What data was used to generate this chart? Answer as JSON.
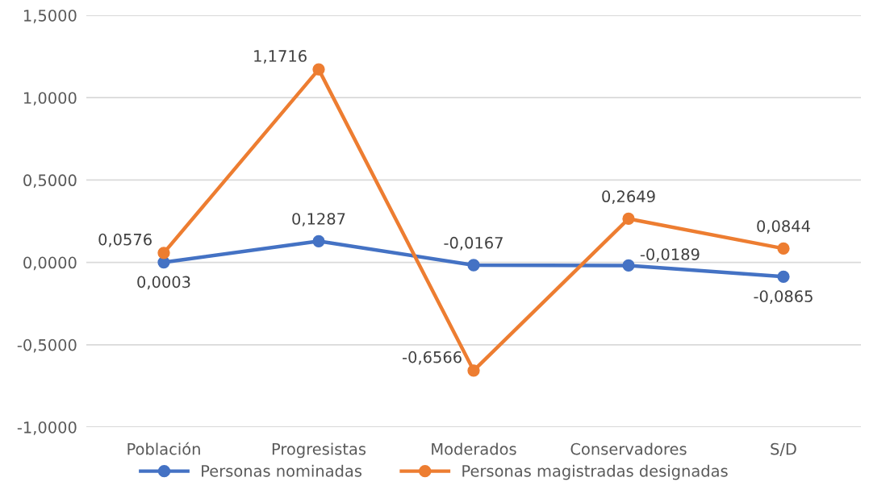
{
  "chart_data": {
    "type": "line",
    "categories": [
      "Población",
      "Progresistas",
      "Moderados",
      "Conservadores",
      "S/D"
    ],
    "series": [
      {
        "name": "Personas nominadas",
        "color": "#4472c4",
        "values": [
          0.0003,
          0.1287,
          -0.0167,
          -0.0189,
          -0.0865
        ],
        "value_labels": [
          "0,0003",
          "0,1287",
          "-0,0167",
          "-0,0189",
          "-0,0865"
        ]
      },
      {
        "name": "Personas magistradas designadas",
        "color": "#ed7d31",
        "values": [
          0.0576,
          1.1716,
          -0.6566,
          0.2649,
          0.0844
        ],
        "value_labels": [
          "0,0576",
          "1,1716",
          "-0,6566",
          "0,2649",
          "0,0844"
        ]
      }
    ],
    "ylim": [
      -1,
      1.5
    ],
    "yticks": [
      {
        "value": -1,
        "label": "-1,0000"
      },
      {
        "value": -0.5,
        "label": "-0,5000"
      },
      {
        "value": 0,
        "label": "0,0000"
      },
      {
        "value": 0.5,
        "label": "0,5000"
      },
      {
        "value": 1,
        "label": "1,0000"
      },
      {
        "value": 1.5,
        "label": "1,5000"
      }
    ],
    "grid": "y",
    "legend": "bottom",
    "marker": "circle",
    "line_style": "solid"
  }
}
